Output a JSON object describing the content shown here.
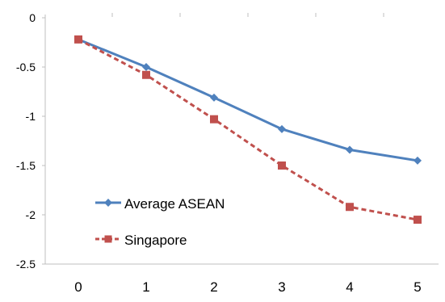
{
  "chart_data": {
    "type": "line",
    "x": [
      0,
      1,
      2,
      3,
      4,
      5
    ],
    "xticks": [
      "0",
      "1",
      "2",
      "3",
      "4",
      "5"
    ],
    "yticks": [
      "0",
      "-0.5",
      "-1",
      "-1.5",
      "-2",
      "-2.5"
    ],
    "ylim": [
      -2.5,
      0
    ],
    "xlim": [
      0,
      5
    ],
    "grid": false,
    "legend_position": "lower-left",
    "series": [
      {
        "name": "Average ASEAN",
        "values": [
          -0.22,
          -0.5,
          -0.81,
          -1.13,
          -1.34,
          -1.45
        ],
        "color": "#4F81BD",
        "marker": "diamond",
        "line_style": "solid"
      },
      {
        "name": "Singapore",
        "values": [
          -0.22,
          -0.58,
          -1.03,
          -1.5,
          -1.92,
          -2.05
        ],
        "color": "#C0504D",
        "marker": "square",
        "line_style": "dashed"
      }
    ]
  }
}
